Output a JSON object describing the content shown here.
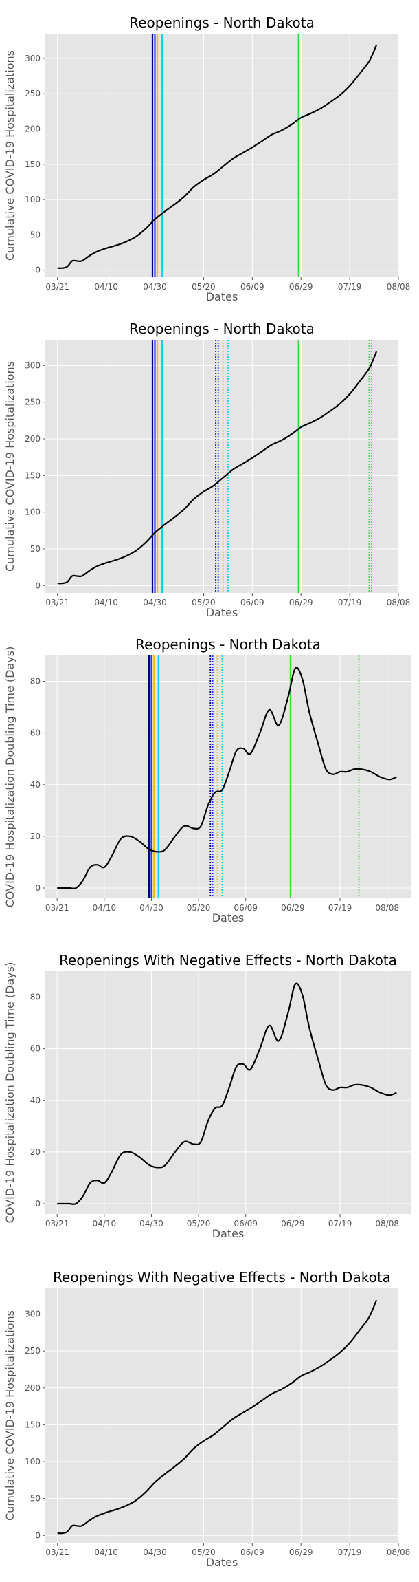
{
  "colors": {
    "panel_background": "#e5e5e5",
    "grid": "#ffffff",
    "series_line": "#000000",
    "event_navy": "#000080",
    "event_blue": "#1f3cff",
    "event_gold": "#f2c200",
    "event_cyan": "#00d8e8",
    "event_green": "#33dd33",
    "event_violet": "#c080d0"
  },
  "x_tick_labels": [
    "03/21",
    "04/10",
    "04/30",
    "05/20",
    "06/09",
    "06/29",
    "07/19",
    "08/08"
  ],
  "chart_data": [
    {
      "type": "line",
      "title": "Reopenings - North Dakota",
      "xlabel": "Dates",
      "ylabel": "Cumulative COVID-19 Hospitalizations",
      "x_axis": "date",
      "xlim": [
        "2020-03-16",
        "2020-08-08"
      ],
      "ylim": [
        -10,
        335
      ],
      "yticks": [
        0,
        50,
        100,
        150,
        200,
        250,
        300
      ],
      "grid": true,
      "series": [
        {
          "x": [
            "2020-03-21",
            "2020-03-23",
            "2020-03-25",
            "2020-03-27",
            "2020-03-29",
            "2020-03-31",
            "2020-04-03",
            "2020-04-06",
            "2020-04-10",
            "2020-04-14",
            "2020-04-18",
            "2020-04-22",
            "2020-04-26",
            "2020-04-30",
            "2020-05-04",
            "2020-05-08",
            "2020-05-12",
            "2020-05-16",
            "2020-05-20",
            "2020-05-24",
            "2020-05-28",
            "2020-06-01",
            "2020-06-05",
            "2020-06-09",
            "2020-06-13",
            "2020-06-17",
            "2020-06-21",
            "2020-06-25",
            "2020-06-29",
            "2020-07-03",
            "2020-07-07",
            "2020-07-11",
            "2020-07-15",
            "2020-07-19",
            "2020-07-23",
            "2020-07-27",
            "2020-07-30"
          ],
          "y": [
            3,
            3,
            5,
            13,
            13,
            13,
            20,
            26,
            31,
            35,
            40,
            47,
            58,
            72,
            83,
            93,
            104,
            118,
            128,
            136,
            147,
            158,
            166,
            174,
            183,
            192,
            198,
            206,
            216,
            222,
            229,
            238,
            248,
            261,
            278,
            296,
            319
          ]
        }
      ],
      "events": [
        {
          "date": "2020-04-29",
          "color": "#000080",
          "style": "solid"
        },
        {
          "date": "2020-04-30",
          "color": "#1f3cff",
          "style": "solid"
        },
        {
          "date": "2020-05-01",
          "color": "#f2c200",
          "style": "solid"
        },
        {
          "date": "2020-05-03",
          "color": "#00d8e8",
          "style": "solid"
        },
        {
          "date": "2020-06-28",
          "color": "#33dd33",
          "style": "solid"
        }
      ]
    },
    {
      "type": "line",
      "title": "Reopenings - North Dakota",
      "xlabel": "Dates",
      "ylabel": "Cumulative COVID-19 Hospitalizations",
      "x_axis": "date",
      "xlim": [
        "2020-03-16",
        "2020-08-08"
      ],
      "ylim": [
        -10,
        335
      ],
      "yticks": [
        0,
        50,
        100,
        150,
        200,
        250,
        300
      ],
      "grid": true,
      "series": [
        {
          "x": [
            "2020-03-21",
            "2020-03-23",
            "2020-03-25",
            "2020-03-27",
            "2020-03-29",
            "2020-03-31",
            "2020-04-03",
            "2020-04-06",
            "2020-04-10",
            "2020-04-14",
            "2020-04-18",
            "2020-04-22",
            "2020-04-26",
            "2020-04-30",
            "2020-05-04",
            "2020-05-08",
            "2020-05-12",
            "2020-05-16",
            "2020-05-20",
            "2020-05-24",
            "2020-05-28",
            "2020-06-01",
            "2020-06-05",
            "2020-06-09",
            "2020-06-13",
            "2020-06-17",
            "2020-06-21",
            "2020-06-25",
            "2020-06-29",
            "2020-07-03",
            "2020-07-07",
            "2020-07-11",
            "2020-07-15",
            "2020-07-19",
            "2020-07-23",
            "2020-07-27",
            "2020-07-30"
          ],
          "y": [
            3,
            3,
            5,
            13,
            13,
            13,
            20,
            26,
            31,
            35,
            40,
            47,
            58,
            72,
            83,
            93,
            104,
            118,
            128,
            136,
            147,
            158,
            166,
            174,
            183,
            192,
            198,
            206,
            216,
            222,
            229,
            238,
            248,
            261,
            278,
            296,
            319
          ]
        }
      ],
      "events": [
        {
          "date": "2020-04-29",
          "color": "#000080",
          "style": "solid"
        },
        {
          "date": "2020-04-30",
          "color": "#1f3cff",
          "style": "solid"
        },
        {
          "date": "2020-05-01",
          "color": "#f2c200",
          "style": "solid"
        },
        {
          "date": "2020-05-03",
          "color": "#00d8e8",
          "style": "solid"
        },
        {
          "date": "2020-05-25",
          "color": "#000080",
          "style": "dotted"
        },
        {
          "date": "2020-05-26",
          "color": "#1f3cff",
          "style": "dotted"
        },
        {
          "date": "2020-05-28",
          "color": "#f2c200",
          "style": "dotted"
        },
        {
          "date": "2020-05-30",
          "color": "#00d8e8",
          "style": "dotted"
        },
        {
          "date": "2020-06-28",
          "color": "#33dd33",
          "style": "solid"
        },
        {
          "date": "2020-07-27",
          "color": "#33dd33",
          "style": "dotted"
        },
        {
          "date": "2020-07-28",
          "color": "#c080d0",
          "style": "dotted"
        }
      ]
    },
    {
      "type": "line",
      "title": "Reopenings - North Dakota",
      "xlabel": "Dates",
      "ylabel": "COVID-19 Hospitalization Doubling Time (Days)",
      "x_axis": "date",
      "xlim": [
        "2020-03-16",
        "2020-08-18"
      ],
      "ylim": [
        -4,
        90
      ],
      "yticks": [
        0,
        20,
        40,
        60,
        80
      ],
      "grid": true,
      "series": [
        {
          "x": [
            "2020-03-21",
            "2020-03-26",
            "2020-03-29",
            "2020-04-01",
            "2020-04-04",
            "2020-04-07",
            "2020-04-10",
            "2020-04-13",
            "2020-04-17",
            "2020-04-21",
            "2020-04-25",
            "2020-04-29",
            "2020-05-03",
            "2020-05-06",
            "2020-05-10",
            "2020-05-14",
            "2020-05-18",
            "2020-05-21",
            "2020-05-24",
            "2020-05-27",
            "2020-05-30",
            "2020-06-02",
            "2020-06-05",
            "2020-06-08",
            "2020-06-11",
            "2020-06-15",
            "2020-06-19",
            "2020-06-23",
            "2020-06-27",
            "2020-06-30",
            "2020-07-03",
            "2020-07-06",
            "2020-07-10",
            "2020-07-13",
            "2020-07-16",
            "2020-07-19",
            "2020-07-22",
            "2020-07-25",
            "2020-07-28",
            "2020-08-01",
            "2020-08-05",
            "2020-08-09",
            "2020-08-12"
          ],
          "y": [
            0,
            0,
            0,
            3,
            8,
            9,
            8,
            12,
            19,
            20,
            18,
            15,
            14,
            15,
            20,
            24,
            23,
            24,
            32,
            37,
            38,
            45,
            53,
            54,
            52,
            60,
            69,
            63,
            74,
            85,
            81,
            68,
            55,
            46,
            44,
            45,
            45,
            46,
            46,
            45,
            43,
            42,
            43
          ]
        }
      ],
      "events": [
        {
          "date": "2020-04-29",
          "color": "#000080",
          "style": "solid"
        },
        {
          "date": "2020-04-30",
          "color": "#1f3cff",
          "style": "solid"
        },
        {
          "date": "2020-05-01",
          "color": "#f2c200",
          "style": "solid"
        },
        {
          "date": "2020-05-03",
          "color": "#00d8e8",
          "style": "solid"
        },
        {
          "date": "2020-05-25",
          "color": "#000080",
          "style": "dotted"
        },
        {
          "date": "2020-05-26",
          "color": "#1f3cff",
          "style": "dotted"
        },
        {
          "date": "2020-05-28",
          "color": "#f2c200",
          "style": "dotted"
        },
        {
          "date": "2020-05-30",
          "color": "#00d8e8",
          "style": "dotted"
        },
        {
          "date": "2020-06-28",
          "color": "#33dd33",
          "style": "solid"
        },
        {
          "date": "2020-07-27",
          "color": "#33dd33",
          "style": "dotted"
        }
      ]
    },
    {
      "type": "line",
      "title": "Reopenings With Negative Effects - North Dakota",
      "xlabel": "Dates",
      "ylabel": "COVID-19 Hospitalization Doubling Time (Days)",
      "x_axis": "date",
      "xlim": [
        "2020-03-16",
        "2020-08-18"
      ],
      "ylim": [
        -4,
        90
      ],
      "yticks": [
        0,
        20,
        40,
        60,
        80
      ],
      "grid": true,
      "series": [
        {
          "x": [
            "2020-03-21",
            "2020-03-26",
            "2020-03-29",
            "2020-04-01",
            "2020-04-04",
            "2020-04-07",
            "2020-04-10",
            "2020-04-13",
            "2020-04-17",
            "2020-04-21",
            "2020-04-25",
            "2020-04-29",
            "2020-05-03",
            "2020-05-06",
            "2020-05-10",
            "2020-05-14",
            "2020-05-18",
            "2020-05-21",
            "2020-05-24",
            "2020-05-27",
            "2020-05-30",
            "2020-06-02",
            "2020-06-05",
            "2020-06-08",
            "2020-06-11",
            "2020-06-15",
            "2020-06-19",
            "2020-06-23",
            "2020-06-27",
            "2020-06-30",
            "2020-07-03",
            "2020-07-06",
            "2020-07-10",
            "2020-07-13",
            "2020-07-16",
            "2020-07-19",
            "2020-07-22",
            "2020-07-25",
            "2020-07-28",
            "2020-08-01",
            "2020-08-05",
            "2020-08-09",
            "2020-08-12"
          ],
          "y": [
            0,
            0,
            0,
            3,
            8,
            9,
            8,
            12,
            19,
            20,
            18,
            15,
            14,
            15,
            20,
            24,
            23,
            24,
            32,
            37,
            38,
            45,
            53,
            54,
            52,
            60,
            69,
            63,
            74,
            85,
            81,
            68,
            55,
            46,
            44,
            45,
            45,
            46,
            46,
            45,
            43,
            42,
            43
          ]
        }
      ],
      "events": []
    },
    {
      "type": "line",
      "title": "Reopenings With Negative Effects - North Dakota",
      "xlabel": "Dates",
      "ylabel": "Cumulative COVID-19 Hospitalizations",
      "x_axis": "date",
      "xlim": [
        "2020-03-16",
        "2020-08-08"
      ],
      "ylim": [
        -10,
        335
      ],
      "yticks": [
        0,
        50,
        100,
        150,
        200,
        250,
        300
      ],
      "grid": true,
      "series": [
        {
          "x": [
            "2020-03-21",
            "2020-03-23",
            "2020-03-25",
            "2020-03-27",
            "2020-03-29",
            "2020-03-31",
            "2020-04-03",
            "2020-04-06",
            "2020-04-10",
            "2020-04-14",
            "2020-04-18",
            "2020-04-22",
            "2020-04-26",
            "2020-04-30",
            "2020-05-04",
            "2020-05-08",
            "2020-05-12",
            "2020-05-16",
            "2020-05-20",
            "2020-05-24",
            "2020-05-28",
            "2020-06-01",
            "2020-06-05",
            "2020-06-09",
            "2020-06-13",
            "2020-06-17",
            "2020-06-21",
            "2020-06-25",
            "2020-06-29",
            "2020-07-03",
            "2020-07-07",
            "2020-07-11",
            "2020-07-15",
            "2020-07-19",
            "2020-07-23",
            "2020-07-27",
            "2020-07-30"
          ],
          "y": [
            3,
            3,
            5,
            13,
            13,
            13,
            20,
            26,
            31,
            35,
            40,
            47,
            58,
            72,
            83,
            93,
            104,
            118,
            128,
            136,
            147,
            158,
            166,
            174,
            183,
            192,
            198,
            206,
            216,
            222,
            229,
            238,
            248,
            261,
            278,
            296,
            319
          ]
        }
      ],
      "events": []
    }
  ]
}
